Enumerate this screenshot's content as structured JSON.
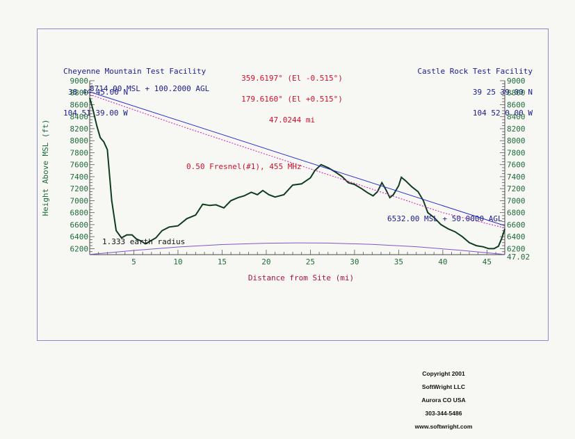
{
  "header": {
    "left_site": {
      "name": "Cheyenne Mountain Test Facility",
      "lat": "38 44 45.00 N",
      "lon": "104 51 39.00 W"
    },
    "right_site": {
      "name": "Castle Rock Test Facility",
      "lat": "39 25 39.00 N",
      "lon": "104 52 0.00 W"
    },
    "bearing1": "359.6197° (El -0.515°)",
    "bearing2": "179.6160° (El +0.515°)",
    "distance": "47.0244 mi"
  },
  "annotations": {
    "left_antenna": "8714.00 MSL + 100.2000 AGL",
    "right_antenna": "6532.00 MSL + 50.0000 AGL",
    "fresnel": "0.50 Fresnel(#1), 455 MHz",
    "earth": "1.333 earth radius",
    "end_distance": "47.02"
  },
  "copyright": {
    "line1": "Copyright 2001",
    "line2": "SoftWright LLC",
    "line3": "Aurora CO  USA",
    "line4": "303-344-5486",
    "line5": "www.softwright.com"
  },
  "colors": {
    "terrain": "#0f3b1f",
    "los": "#2a2ad0",
    "fresnel": "#d01aa8",
    "earth": "#7d55c7",
    "axis_text": "#1f6b3a",
    "header": "#1a1a8c",
    "header_red": "#d0102a"
  },
  "chart_data": {
    "type": "line",
    "title": "",
    "xlabel": "Distance from Site (mi)",
    "ylabel": "Height Above MSL (ft)",
    "xlim": [
      0,
      47.02
    ],
    "ylim": [
      6100,
      9000
    ],
    "x_ticks": [
      5,
      10,
      15,
      20,
      25,
      30,
      35,
      40,
      45
    ],
    "y_ticks": [
      6200,
      6400,
      6600,
      6800,
      7000,
      7200,
      7400,
      7600,
      7800,
      8000,
      8200,
      8400,
      8600,
      8800,
      9000
    ],
    "grid": false,
    "series": [
      {
        "name": "terrain",
        "x": [
          0,
          0.4,
          0.8,
          1.2,
          1.6,
          2.0,
          2.5,
          3.0,
          3.6,
          4.2,
          4.8,
          5.3,
          5.8,
          6.3,
          6.8,
          7.5,
          8.2,
          9.0,
          10.0,
          11.0,
          12.0,
          12.8,
          13.6,
          14.3,
          15.2,
          16.0,
          16.8,
          17.5,
          18.3,
          19.0,
          19.6,
          20.3,
          21.0,
          22.0,
          23.0,
          24.0,
          25.0,
          25.5,
          26.2,
          27.0,
          27.8,
          28.6,
          29.3,
          30.0,
          30.8,
          31.5,
          32.1,
          32.6,
          33.1,
          33.5,
          34.0,
          34.4,
          35.0,
          35.3,
          35.8,
          36.5,
          37.2,
          37.8,
          38.3,
          39.0,
          39.8,
          40.6,
          41.4,
          42.2,
          43.0,
          43.8,
          44.6,
          45.2,
          45.8,
          46.3,
          46.7,
          47.02
        ],
        "y": [
          8714,
          8500,
          8250,
          8050,
          7980,
          7850,
          7000,
          6500,
          6380,
          6430,
          6430,
          6360,
          6330,
          6280,
          6320,
          6380,
          6500,
          6560,
          6580,
          6700,
          6760,
          6940,
          6920,
          6930,
          6880,
          7000,
          7050,
          7080,
          7140,
          7100,
          7170,
          7100,
          7060,
          7100,
          7260,
          7280,
          7380,
          7500,
          7600,
          7550,
          7480,
          7400,
          7300,
          7270,
          7200,
          7130,
          7080,
          7150,
          7300,
          7200,
          7050,
          7100,
          7250,
          7390,
          7330,
          7230,
          7150,
          7000,
          6800,
          6720,
          6600,
          6530,
          6480,
          6400,
          6300,
          6250,
          6230,
          6200,
          6200,
          6240,
          6380,
          6530
        ]
      },
      {
        "name": "line_of_sight",
        "x": [
          0,
          47.02
        ],
        "y": [
          8814,
          6582
        ]
      },
      {
        "name": "fresnel",
        "x": [
          0,
          10,
          20,
          30,
          40,
          47.02
        ],
        "y": [
          8770,
          8260,
          7770,
          7290,
          6800,
          6545
        ]
      },
      {
        "name": "earth_curvature",
        "x": [
          0,
          5,
          10,
          15,
          20,
          23.5,
          27,
          32,
          37,
          42,
          47.02
        ],
        "y": [
          6102,
          6170,
          6228,
          6268,
          6290,
          6296,
          6293,
          6272,
          6232,
          6172,
          6102
        ]
      }
    ]
  }
}
